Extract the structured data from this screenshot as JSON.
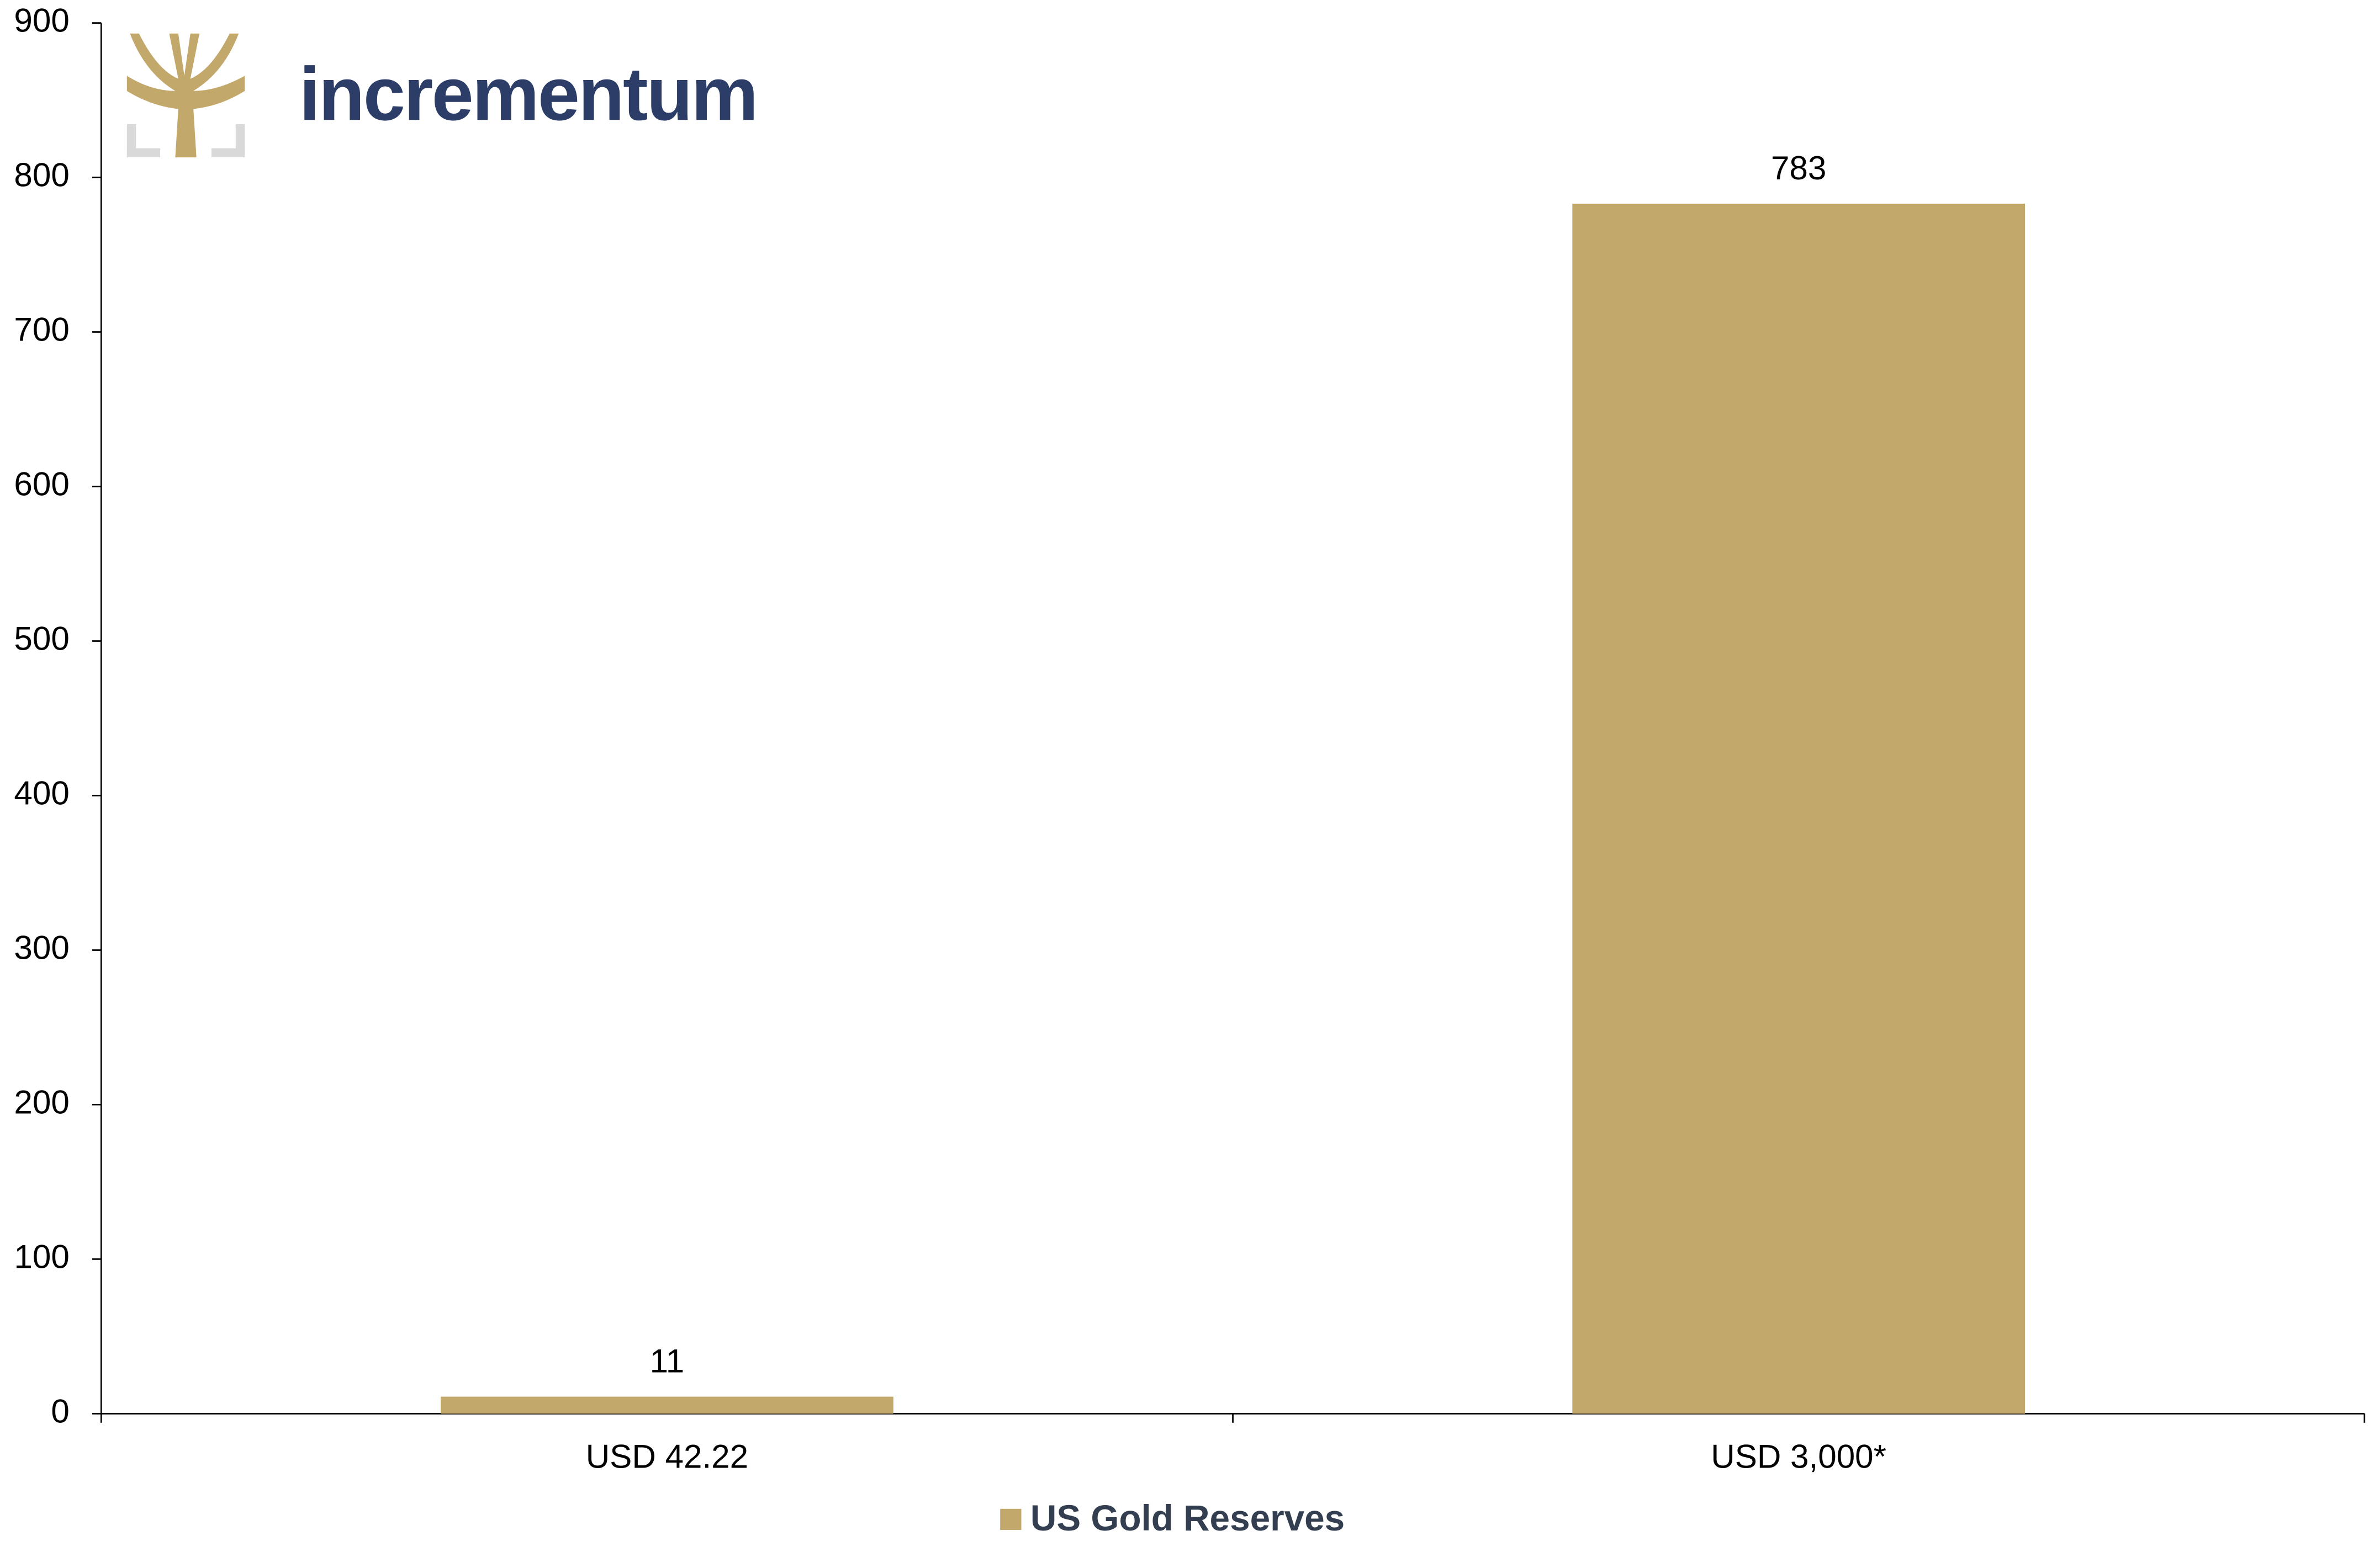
{
  "chart_data": {
    "type": "bar",
    "logo_text": "incrementum",
    "categories": [
      "USD 42.22",
      "USD 3,000*"
    ],
    "series": [
      {
        "name": "US Gold Reserves",
        "color": "#c2a86a",
        "values": [
          11,
          783
        ]
      }
    ],
    "ylim": [
      0,
      900
    ],
    "yticks": [
      0,
      100,
      200,
      300,
      400,
      500,
      600,
      700,
      800,
      900
    ],
    "grid": false,
    "legend": "bottom"
  }
}
